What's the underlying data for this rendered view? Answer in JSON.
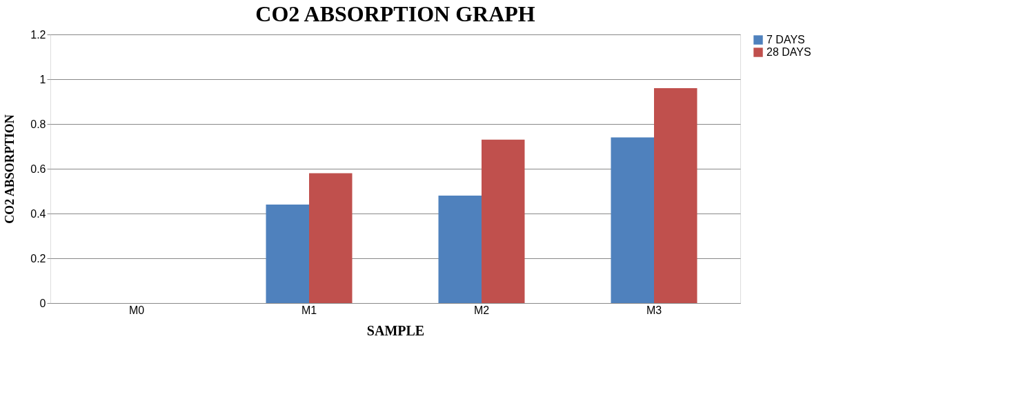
{
  "chart_data": {
    "type": "bar",
    "title": "CO2 ABSORPTION GRAPH",
    "xlabel": "SAMPLE",
    "ylabel": "CO2 ABSORPTION",
    "categories": [
      "M0",
      "M1",
      "M2",
      "M3"
    ],
    "series": [
      {
        "name": "7 DAYS",
        "color": "#4f81bd",
        "values": [
          0,
          0.44,
          0.48,
          0.74
        ]
      },
      {
        "name": "28 DAYS",
        "color": "#c0504d",
        "values": [
          0,
          0.58,
          0.73,
          0.96
        ]
      }
    ],
    "ylim": [
      0,
      1.2
    ],
    "yticks": [
      0,
      0.2,
      0.4,
      0.6,
      0.8,
      1,
      1.2
    ],
    "grid": "y",
    "legend": "right"
  }
}
